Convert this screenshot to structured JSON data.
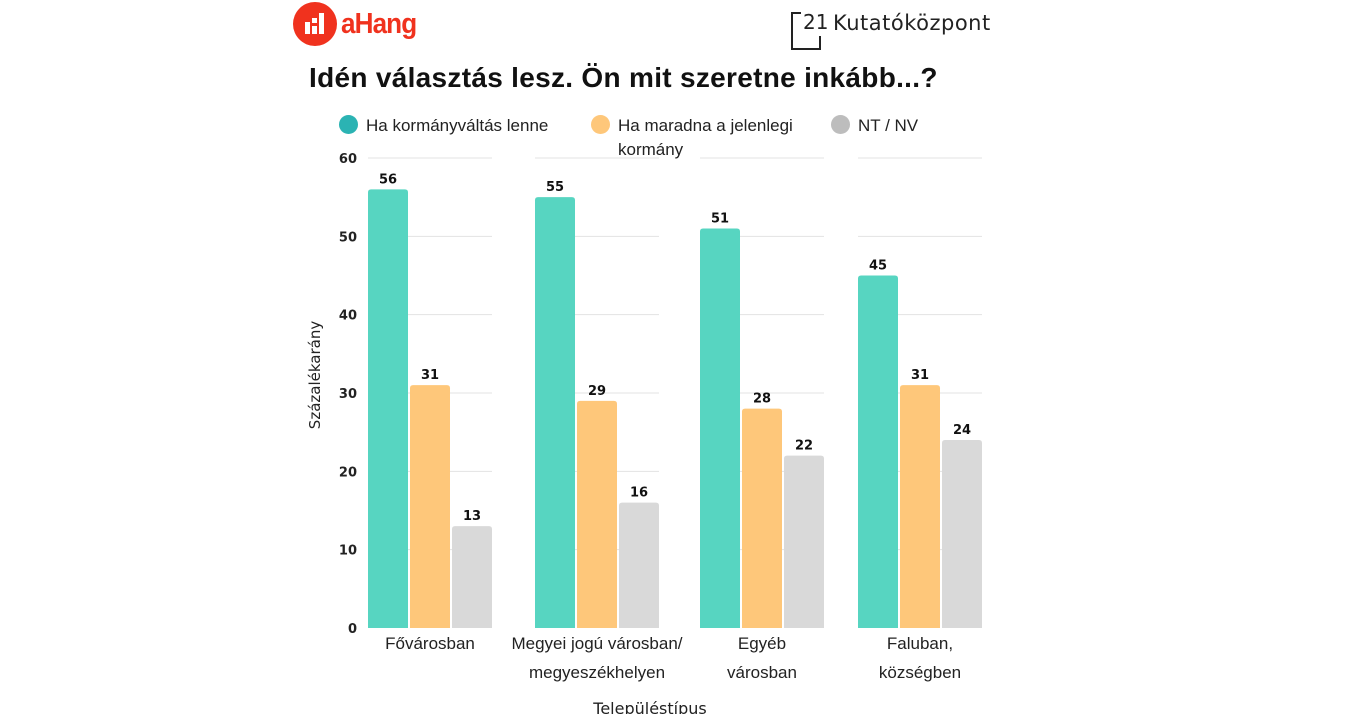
{
  "header": {
    "logo_left": "aHang",
    "logo_right_number": "21",
    "logo_right_text": "Kutatóközpont"
  },
  "chart_data": {
    "type": "bar",
    "title": "Idén választás lesz. Ön mit szeretne inkább...?",
    "xlabel": "Településtípus",
    "ylabel": "Százalékarány",
    "ylim": [
      0,
      60
    ],
    "yticks": [
      0,
      10,
      20,
      30,
      40,
      50,
      60
    ],
    "grid": true,
    "legend_position": "top",
    "categories": [
      [
        "Fővárosban"
      ],
      [
        "Megyei jogú városban/",
        "megyeszékhelyen"
      ],
      [
        "Egyéb",
        "városban"
      ],
      [
        "Faluban,",
        "községben"
      ]
    ],
    "series": [
      {
        "name": "Ha kormányváltás lenne",
        "legend_lines": [
          "Ha kormányváltás lenne"
        ],
        "color": "#57d5c1",
        "legend_color": "#2bb3b3",
        "values": [
          56,
          55,
          51,
          45
        ]
      },
      {
        "name": "Ha maradna a jelenlegi kormány",
        "legend_lines": [
          "Ha maradna a jelenlegi",
          "kormány"
        ],
        "color": "#fec77a",
        "legend_color": "#fec77a",
        "values": [
          31,
          29,
          28,
          31
        ]
      },
      {
        "name": "NT / NV",
        "legend_lines": [
          "NT / NV"
        ],
        "color": "#d9d9d9",
        "legend_color": "#bdbdbd",
        "values": [
          13,
          16,
          22,
          24
        ]
      }
    ]
  }
}
